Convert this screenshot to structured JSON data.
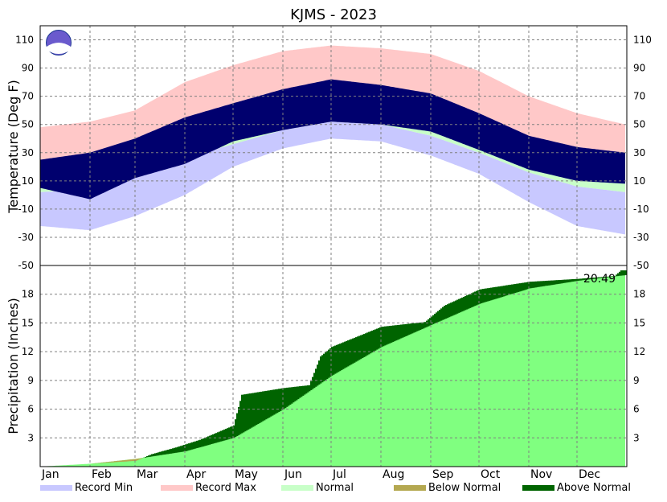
{
  "chart_data": {
    "type": "area",
    "title": "KJMS - 2023",
    "months": [
      "Jan",
      "Feb",
      "Mar",
      "Apr",
      "May",
      "Jun",
      "Jul",
      "Aug",
      "Sep",
      "Oct",
      "Nov",
      "Dec"
    ],
    "month_start_days": [
      1,
      32,
      60,
      91,
      121,
      152,
      182,
      213,
      244,
      274,
      305,
      335
    ],
    "days_in_year": 365,
    "temperature": {
      "ylabel": "Temperature (Deg F)",
      "ylim": [
        -50,
        120
      ],
      "ticks": [
        110,
        90,
        70,
        50,
        30,
        10,
        -10,
        -30,
        -50
      ],
      "series_points": {
        "record_min": [
          [
            1,
            -22
          ],
          [
            32,
            -25
          ],
          [
            60,
            -15
          ],
          [
            91,
            0
          ],
          [
            121,
            20
          ],
          [
            152,
            33
          ],
          [
            182,
            40
          ],
          [
            213,
            38
          ],
          [
            244,
            28
          ],
          [
            274,
            15
          ],
          [
            305,
            -5
          ],
          [
            335,
            -22
          ],
          [
            365,
            -28
          ]
        ],
        "record_max": [
          [
            1,
            48
          ],
          [
            32,
            52
          ],
          [
            60,
            60
          ],
          [
            91,
            80
          ],
          [
            121,
            92
          ],
          [
            152,
            102
          ],
          [
            182,
            106
          ],
          [
            213,
            104
          ],
          [
            244,
            100
          ],
          [
            274,
            88
          ],
          [
            305,
            70
          ],
          [
            335,
            58
          ],
          [
            365,
            50
          ]
        ],
        "normal_low": [
          [
            1,
            2
          ],
          [
            32,
            4
          ],
          [
            60,
            15
          ],
          [
            91,
            26
          ],
          [
            121,
            36
          ],
          [
            152,
            46
          ],
          [
            182,
            52
          ],
          [
            213,
            50
          ],
          [
            244,
            42
          ],
          [
            274,
            30
          ],
          [
            305,
            16
          ],
          [
            335,
            6
          ],
          [
            365,
            2
          ]
        ],
        "normal_high": [
          [
            1,
            22
          ],
          [
            32,
            25
          ],
          [
            60,
            36
          ],
          [
            91,
            50
          ],
          [
            121,
            60
          ],
          [
            152,
            68
          ],
          [
            182,
            74
          ],
          [
            213,
            72
          ],
          [
            244,
            66
          ],
          [
            274,
            54
          ],
          [
            305,
            38
          ],
          [
            335,
            26
          ],
          [
            365,
            22
          ]
        ],
        "observed_low": [
          [
            1,
            5
          ],
          [
            32,
            -3
          ],
          [
            60,
            12
          ],
          [
            91,
            22
          ],
          [
            121,
            38
          ],
          [
            152,
            46
          ],
          [
            182,
            52
          ],
          [
            213,
            50
          ],
          [
            244,
            45
          ],
          [
            274,
            32
          ],
          [
            305,
            18
          ],
          [
            335,
            10
          ],
          [
            365,
            8
          ]
        ],
        "observed_high": [
          [
            1,
            25
          ],
          [
            32,
            30
          ],
          [
            60,
            40
          ],
          [
            91,
            55
          ],
          [
            121,
            65
          ],
          [
            152,
            75
          ],
          [
            182,
            82
          ],
          [
            213,
            78
          ],
          [
            244,
            72
          ],
          [
            274,
            58
          ],
          [
            305,
            42
          ],
          [
            335,
            34
          ],
          [
            365,
            30
          ]
        ]
      }
    },
    "precipitation": {
      "ylabel": "Precipitation (Inches)",
      "ylim": [
        0,
        21
      ],
      "ticks": [
        18,
        15,
        12,
        9,
        6,
        3
      ],
      "annotation": "20.49",
      "normal_cumulative": [
        [
          1,
          0
        ],
        [
          32,
          0.3
        ],
        [
          60,
          0.8
        ],
        [
          91,
          1.6
        ],
        [
          121,
          3.0
        ],
        [
          152,
          6.0
        ],
        [
          182,
          9.5
        ],
        [
          213,
          12.5
        ],
        [
          244,
          14.8
        ],
        [
          274,
          17.0
        ],
        [
          305,
          18.6
        ],
        [
          335,
          19.4
        ],
        [
          365,
          20.0
        ]
      ],
      "actual_cumulative": [
        [
          1,
          0
        ],
        [
          32,
          0.3
        ],
        [
          60,
          0.6
        ],
        [
          70,
          1.3
        ],
        [
          85,
          2.0
        ],
        [
          100,
          2.8
        ],
        [
          121,
          4.3
        ],
        [
          126,
          7.5
        ],
        [
          152,
          8.2
        ],
        [
          168,
          8.5
        ],
        [
          175,
          11.5
        ],
        [
          182,
          12.5
        ],
        [
          213,
          14.6
        ],
        [
          240,
          15.1
        ],
        [
          252,
          16.8
        ],
        [
          274,
          18.5
        ],
        [
          305,
          19.3
        ],
        [
          335,
          19.6
        ],
        [
          358,
          19.9
        ],
        [
          362,
          20.49
        ],
        [
          365,
          20.49
        ]
      ]
    },
    "legend": [
      {
        "label": "Record Min",
        "color": "#c8c8ff"
      },
      {
        "label": "Record Max",
        "color": "#ffc8c8"
      },
      {
        "label": "Normal",
        "color": "#c8ffc8"
      },
      {
        "label": "Below Normal",
        "color": "#b4a850"
      },
      {
        "label": "Above Normal",
        "color": "#006400"
      }
    ],
    "colors": {
      "observed": "#00006e",
      "normal_precip": "#80ff80",
      "above_normal": "#006400",
      "below_normal": "#b4a850",
      "grid": "#808080"
    }
  }
}
